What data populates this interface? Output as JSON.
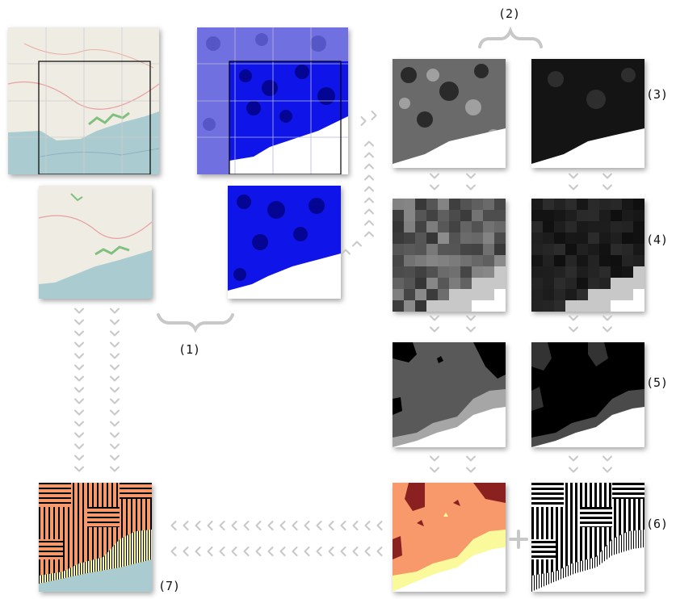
{
  "labels": {
    "step1": "(1)",
    "step2": "(2)",
    "step3": "(3)",
    "step4": "(4)",
    "step5": "(5)",
    "step6": "(6)",
    "step7": "(7)"
  },
  "colors": {
    "arrow": "#c8c8c8",
    "sea": "#aacbd0",
    "land": "#efece4",
    "blue": "#0f14e8",
    "orange": "#f7996a",
    "darkred": "#8a2020",
    "lightyellow": "#fafa9c",
    "gray_light": "#a6a6a6",
    "gray_mid": "#595959"
  }
}
